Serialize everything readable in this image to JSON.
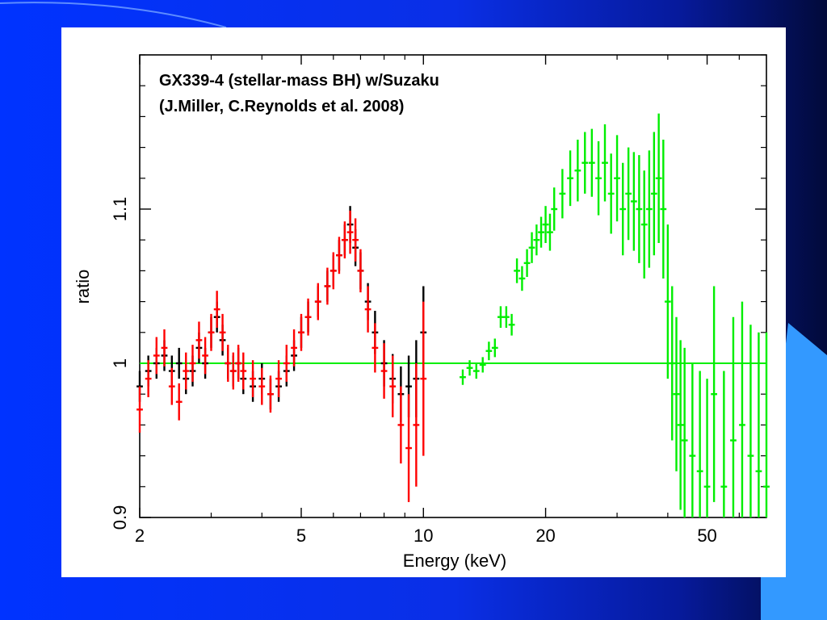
{
  "colors": {
    "slide_background": "#0033ff",
    "deco_light": "#3399ff",
    "series_black": "#000000",
    "series_red": "#ff0000",
    "series_green": "#00ee00"
  },
  "chart_data": {
    "type": "scatter",
    "title_lines": [
      "GX339-4 (stellar-mass BH) w/Suzaku",
      "(J.Miller, C.Reynolds et al. 2008)"
    ],
    "xlabel": "Energy (keV)",
    "ylabel": "ratio",
    "x_scale": "log",
    "xlim": [
      2,
      70
    ],
    "ylim": [
      0.9,
      1.2
    ],
    "x_ticks": [
      {
        "value": 2,
        "label": "2"
      },
      {
        "value": 5,
        "label": "5"
      },
      {
        "value": 10,
        "label": "10"
      },
      {
        "value": 20,
        "label": "20"
      },
      {
        "value": 50,
        "label": "50"
      }
    ],
    "y_ticks": [
      {
        "value": 0.9,
        "label": "0.9"
      },
      {
        "value": 1.0,
        "label": "1"
      },
      {
        "value": 1.1,
        "label": "1.1"
      }
    ],
    "reference_line": {
      "y": 1.0
    },
    "series": [
      {
        "color": "#000000",
        "x": [
          2.0,
          2.1,
          2.2,
          2.3,
          2.4,
          2.5,
          2.6,
          2.7,
          2.8,
          2.9,
          3.0,
          3.1,
          3.2,
          3.3,
          3.4,
          3.5,
          3.6,
          3.8,
          4.0,
          4.2,
          4.4,
          4.6,
          4.8,
          5.0,
          5.2,
          5.5,
          5.8,
          6.0,
          6.2,
          6.4,
          6.6,
          6.8,
          7.0,
          7.3,
          7.6,
          8.0,
          8.4,
          8.8,
          9.2,
          9.6,
          10.0
        ],
        "y": [
          0.985,
          0.995,
          1.0,
          1.005,
          0.995,
          1.0,
          0.99,
          0.995,
          1.01,
          1.0,
          1.02,
          1.03,
          1.015,
          1.0,
          0.995,
          1.0,
          0.99,
          0.985,
          0.99,
          0.98,
          0.985,
          0.995,
          1.005,
          1.02,
          1.03,
          1.04,
          1.05,
          1.06,
          1.07,
          1.08,
          1.09,
          1.075,
          1.06,
          1.04,
          1.02,
          1.0,
          0.99,
          0.98,
          0.985,
          0.99,
          1.02
        ],
        "yerr": [
          0.01,
          0.01,
          0.01,
          0.01,
          0.01,
          0.01,
          0.01,
          0.01,
          0.01,
          0.01,
          0.01,
          0.01,
          0.01,
          0.01,
          0.01,
          0.01,
          0.01,
          0.01,
          0.01,
          0.01,
          0.01,
          0.01,
          0.01,
          0.01,
          0.01,
          0.01,
          0.01,
          0.01,
          0.01,
          0.01,
          0.012,
          0.012,
          0.012,
          0.012,
          0.014,
          0.015,
          0.016,
          0.018,
          0.02,
          0.025,
          0.03
        ]
      },
      {
        "color": "#ff0000",
        "x": [
          2.0,
          2.1,
          2.2,
          2.3,
          2.4,
          2.5,
          2.6,
          2.7,
          2.8,
          2.9,
          3.0,
          3.1,
          3.2,
          3.3,
          3.4,
          3.5,
          3.6,
          3.8,
          4.0,
          4.2,
          4.4,
          4.6,
          4.8,
          5.0,
          5.2,
          5.5,
          5.8,
          6.0,
          6.2,
          6.4,
          6.6,
          6.8,
          7.0,
          7.3,
          7.6,
          8.0,
          8.4,
          8.8,
          9.2,
          9.6,
          10.0
        ],
        "y": [
          0.97,
          0.99,
          1.005,
          1.01,
          0.985,
          0.975,
          0.995,
          1.0,
          1.015,
          1.005,
          1.02,
          1.035,
          1.02,
          1.0,
          0.995,
          1.0,
          0.995,
          0.99,
          0.985,
          0.98,
          0.99,
          1.0,
          1.01,
          1.02,
          1.03,
          1.04,
          1.05,
          1.06,
          1.07,
          1.08,
          1.085,
          1.08,
          1.06,
          1.035,
          1.01,
          0.995,
          0.985,
          0.96,
          0.945,
          0.96,
          0.99
        ],
        "yerr": [
          0.015,
          0.012,
          0.012,
          0.012,
          0.012,
          0.012,
          0.012,
          0.012,
          0.012,
          0.012,
          0.012,
          0.012,
          0.012,
          0.012,
          0.012,
          0.012,
          0.012,
          0.012,
          0.012,
          0.012,
          0.012,
          0.012,
          0.012,
          0.012,
          0.012,
          0.012,
          0.012,
          0.012,
          0.012,
          0.012,
          0.014,
          0.014,
          0.014,
          0.015,
          0.016,
          0.018,
          0.02,
          0.025,
          0.035,
          0.04,
          0.05
        ]
      },
      {
        "color": "#00ee00",
        "x": [
          12.5,
          13.0,
          13.5,
          14.0,
          14.5,
          15.0,
          15.5,
          16.0,
          16.5,
          17.0,
          17.5,
          18.0,
          18.5,
          19.0,
          19.5,
          20.0,
          20.5,
          21.0,
          22.0,
          23.0,
          24.0,
          25.0,
          26.0,
          27.0,
          28.0,
          29.0,
          30.0,
          31.0,
          32.0,
          33.0,
          34.0,
          35.0,
          36.0,
          37.0,
          38.0,
          39.0,
          40.0,
          41.0,
          42.0,
          43.0,
          44.0,
          46.0,
          48.0,
          50.0,
          52.0,
          55.0,
          58.0,
          61.0,
          64.0,
          67.0,
          70.0
        ],
        "y": [
          0.991,
          0.997,
          0.995,
          0.999,
          1.008,
          1.01,
          1.03,
          1.03,
          1.025,
          1.06,
          1.055,
          1.065,
          1.075,
          1.08,
          1.085,
          1.09,
          1.085,
          1.1,
          1.11,
          1.12,
          1.125,
          1.13,
          1.13,
          1.12,
          1.13,
          1.11,
          1.12,
          1.1,
          1.11,
          1.105,
          1.1,
          1.09,
          1.1,
          1.11,
          1.12,
          1.1,
          1.04,
          1.0,
          0.98,
          0.96,
          0.95,
          0.94,
          0.93,
          0.92,
          0.98,
          0.92,
          0.95,
          0.96,
          0.94,
          0.93,
          0.92
        ],
        "yerr": [
          0.005,
          0.005,
          0.005,
          0.005,
          0.006,
          0.006,
          0.007,
          0.007,
          0.007,
          0.008,
          0.008,
          0.009,
          0.01,
          0.01,
          0.01,
          0.012,
          0.012,
          0.014,
          0.016,
          0.018,
          0.02,
          0.02,
          0.022,
          0.024,
          0.025,
          0.026,
          0.028,
          0.03,
          0.03,
          0.032,
          0.035,
          0.035,
          0.038,
          0.04,
          0.042,
          0.045,
          0.05,
          0.05,
          0.05,
          0.055,
          0.06,
          0.06,
          0.065,
          0.07,
          0.07,
          0.075,
          0.08,
          0.08,
          0.085,
          0.09,
          0.1
        ]
      }
    ],
    "grid": false,
    "legend": "none"
  }
}
